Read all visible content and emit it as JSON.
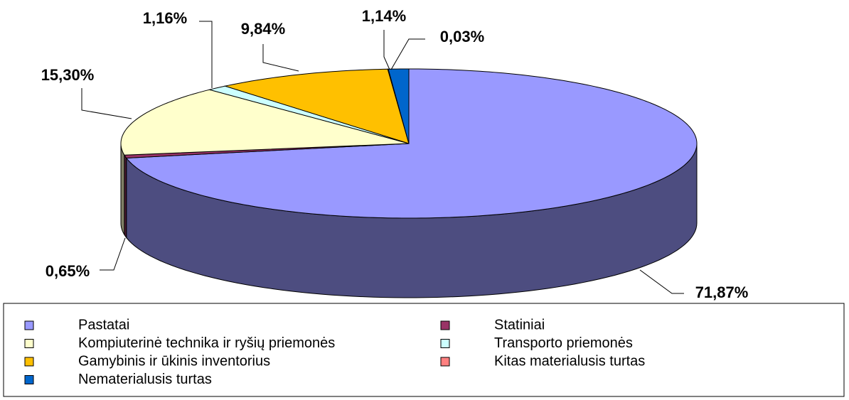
{
  "chart_data": {
    "type": "pie3d",
    "categories": [
      "Pastatai",
      "Statiniai",
      "Kompiuterinė technika ir ryšių priemonės",
      "Transporto priemonės",
      "Gamybinis ir ūkinis inventorius",
      "Kitas materialusis turtas",
      "Nematerialusis turtas"
    ],
    "values": [
      71.87,
      0.65,
      15.3,
      1.16,
      9.84,
      0.03,
      1.14
    ],
    "value_labels": [
      "71,87%",
      "0,65%",
      "15,30%",
      "1,16%",
      "9,84%",
      "0,03%",
      "1,14%"
    ],
    "colors": [
      "#9999ff",
      "#993366",
      "#ffffcc",
      "#ccffff",
      "#ffc000",
      "#ff8080",
      "#0066cc"
    ],
    "legend": "bottom"
  }
}
